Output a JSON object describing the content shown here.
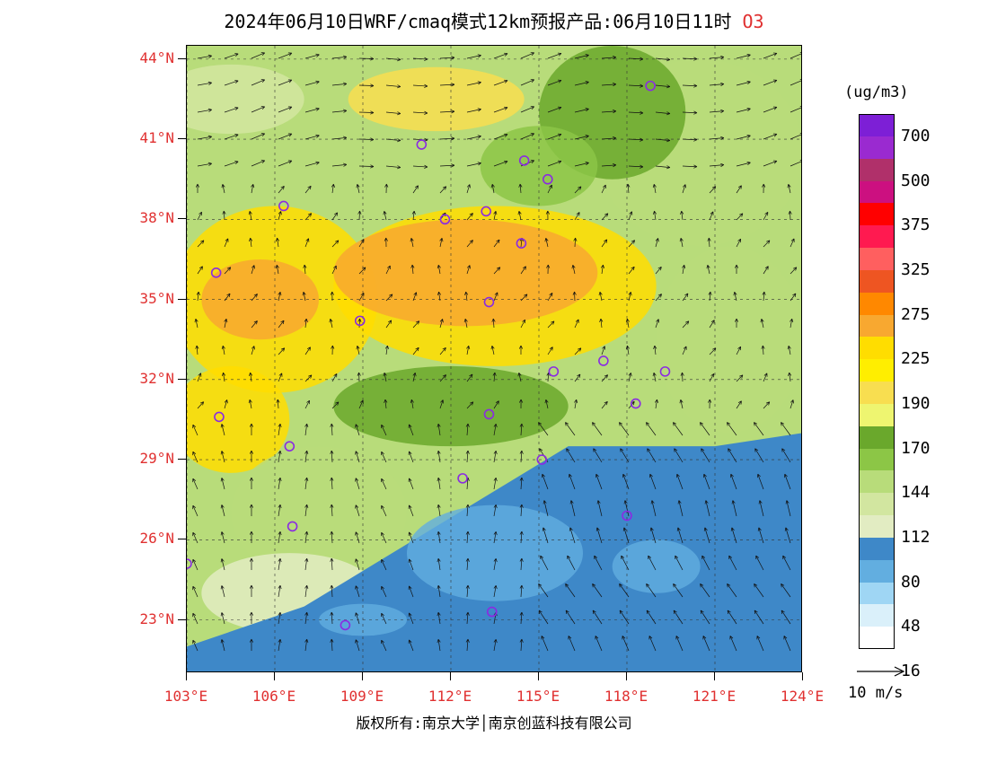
{
  "title": {
    "text": "2024年06月10日WRF/cmaq模式12km预报产品:06月10日11时",
    "pollutant": "O3"
  },
  "map": {
    "lat_labels": [
      "44°N",
      "41°N",
      "38°N",
      "35°N",
      "32°N",
      "29°N",
      "26°N",
      "23°N"
    ],
    "lon_labels": [
      "103°E",
      "106°E",
      "109°E",
      "112°E",
      "115°E",
      "118°E",
      "121°E",
      "124°E"
    ],
    "extent": {
      "lon_min": 103,
      "lon_max": 124,
      "lat_min": 21,
      "lat_max": 44.5
    }
  },
  "legend": {
    "unit": "(ug/m3)",
    "labels": [
      "700",
      "500",
      "375",
      "325",
      "275",
      "225",
      "190",
      "170",
      "144",
      "112",
      "80",
      "48",
      "16"
    ],
    "colors": [
      "#7d1fd6",
      "#9a2ad0",
      "#b0306a",
      "#cc1080",
      "#ff0000",
      "#ff1a50",
      "#ff5f5f",
      "#ee5522",
      "#ff8800",
      "#f8a830",
      "#ffdd00",
      "#ffee00",
      "#f8de50",
      "#eef570",
      "#6aa82c",
      "#8cc646",
      "#b8dc7a",
      "#d2e6a0",
      "#e2ecc2",
      "#3e88c8",
      "#62aee0",
      "#9fd6f4",
      "#daf0fa",
      "#ffffff"
    ]
  },
  "vector_scale": {
    "label": "10 m/s"
  },
  "footer": "版权所有:南京大学│南京创蓝科技有限公司",
  "zones": [
    {
      "lon": 104.5,
      "lat": 42.5,
      "rx": 2.5,
      "ry": 1.3,
      "color": "#d2e6a0"
    },
    {
      "lon": 120.5,
      "lat": 40.5,
      "rx": 3.5,
      "ry": 3.5,
      "color": "#b8dc7a"
    },
    {
      "lon": 117.5,
      "lat": 42.0,
      "rx": 2.5,
      "ry": 2.5,
      "color": "#6aa82c"
    },
    {
      "lon": 111.5,
      "lat": 42.5,
      "rx": 3.0,
      "ry": 1.2,
      "color": "#f8de50"
    },
    {
      "lon": 115.0,
      "lat": 40.0,
      "rx": 2.0,
      "ry": 1.5,
      "color": "#8cc646"
    },
    {
      "lon": 106.0,
      "lat": 35.0,
      "rx": 3.5,
      "ry": 3.5,
      "color": "#ffdd00"
    },
    {
      "lon": 113.5,
      "lat": 35.5,
      "rx": 5.5,
      "ry": 3.0,
      "color": "#ffdd00"
    },
    {
      "lon": 112.5,
      "lat": 36.0,
      "rx": 4.5,
      "ry": 2.0,
      "color": "#f8a830"
    },
    {
      "lon": 105.5,
      "lat": 35.0,
      "rx": 2.0,
      "ry": 1.5,
      "color": "#f8a830"
    },
    {
      "lon": 104.5,
      "lat": 30.5,
      "rx": 2.0,
      "ry": 2.0,
      "color": "#ffdd00"
    },
    {
      "lon": 112.0,
      "lat": 31.0,
      "rx": 4.0,
      "ry": 1.5,
      "color": "#6aa82c"
    },
    {
      "lon": 121.5,
      "lat": 33.5,
      "rx": 2.5,
      "ry": 3.5,
      "color": "#b8dc7a"
    },
    {
      "lon": 107.5,
      "lat": 27.0,
      "rx": 3.0,
      "ry": 2.5,
      "color": "#b8dc7a"
    },
    {
      "lon": 106.5,
      "lat": 24.0,
      "rx": 3.0,
      "ry": 1.5,
      "color": "#e2ecc2"
    }
  ],
  "blue_region": {
    "points": [
      [
        103,
        22
      ],
      [
        107,
        23.5
      ],
      [
        110,
        25.5
      ],
      [
        113,
        27.5
      ],
      [
        116,
        29.5
      ],
      [
        119,
        29.5
      ],
      [
        121,
        29.5
      ],
      [
        124,
        30
      ],
      [
        124,
        21
      ],
      [
        103,
        21
      ]
    ],
    "color": "#3e88c8"
  },
  "blue_patches": [
    {
      "lon": 113.5,
      "lat": 25.5,
      "rx": 3.0,
      "ry": 1.8,
      "color": "#62aee0"
    },
    {
      "lon": 119.0,
      "lat": 25.0,
      "rx": 1.5,
      "ry": 1.0,
      "color": "#62aee0"
    },
    {
      "lon": 109.0,
      "lat": 23.0,
      "rx": 1.5,
      "ry": 0.6,
      "color": "#62aee0"
    }
  ],
  "stations": [
    {
      "lon": 118.8,
      "lat": 43.0
    },
    {
      "lon": 111.0,
      "lat": 40.8
    },
    {
      "lon": 114.5,
      "lat": 40.2
    },
    {
      "lon": 115.3,
      "lat": 39.5
    },
    {
      "lon": 106.3,
      "lat": 38.5
    },
    {
      "lon": 111.8,
      "lat": 38.0
    },
    {
      "lon": 113.2,
      "lat": 38.3
    },
    {
      "lon": 114.4,
      "lat": 37.1
    },
    {
      "lon": 104.0,
      "lat": 36.0
    },
    {
      "lon": 113.3,
      "lat": 34.9
    },
    {
      "lon": 108.9,
      "lat": 34.2
    },
    {
      "lon": 115.5,
      "lat": 32.3
    },
    {
      "lon": 117.2,
      "lat": 32.7
    },
    {
      "lon": 119.3,
      "lat": 32.3
    },
    {
      "lon": 118.3,
      "lat": 31.1
    },
    {
      "lon": 104.1,
      "lat": 30.6
    },
    {
      "lon": 113.3,
      "lat": 30.7
    },
    {
      "lon": 106.5,
      "lat": 29.5
    },
    {
      "lon": 115.1,
      "lat": 29.0
    },
    {
      "lon": 112.4,
      "lat": 28.3
    },
    {
      "lon": 118.0,
      "lat": 26.9
    },
    {
      "lon": 106.6,
      "lat": 26.5
    },
    {
      "lon": 103.0,
      "lat": 25.1
    },
    {
      "lon": 108.4,
      "lat": 22.8
    },
    {
      "lon": 113.4,
      "lat": 23.3
    }
  ]
}
